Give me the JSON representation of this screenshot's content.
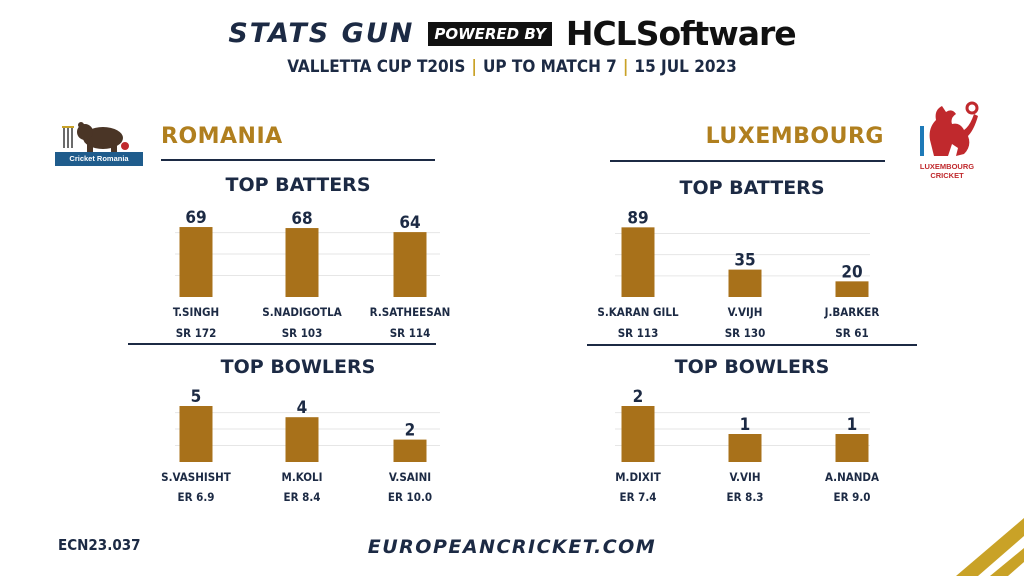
{
  "header": {
    "brand": "STATS GUN",
    "powered_by": "POWERED BY",
    "sponsor": "HCLSoftware",
    "competition": "VALLETTA CUP T20IS",
    "stage": "UP TO MATCH 7",
    "date": "15 JUL 2023",
    "separator": "|"
  },
  "colors": {
    "bar": "#a8711a",
    "navy": "#1c2a44",
    "gold": "#b07f1e",
    "grid": "#e6e6e6"
  },
  "teams": {
    "left": {
      "name": "ROMANIA",
      "logo_text": "Cricket Romania"
    },
    "right": {
      "name": "LUXEMBOURG",
      "logo_text": "LUXEMBOURG CRICKET"
    }
  },
  "chart_data": [
    {
      "type": "bar",
      "title": "TOP BATTERS",
      "team": "ROMANIA",
      "categories": [
        "T.SINGH",
        "S.NADIGOTLA",
        "R.SATHEESAN"
      ],
      "values": [
        69,
        68,
        64
      ],
      "sublabels": [
        "SR 172",
        "SR 103",
        "SR 114"
      ],
      "ylim": [
        0,
        72
      ]
    },
    {
      "type": "bar",
      "title": "TOP BATTERS",
      "team": "LUXEMBOURG",
      "categories": [
        "S.KARAN GILL",
        "V.VIJH",
        "J.BARKER"
      ],
      "values": [
        89,
        35,
        20
      ],
      "sublabels": [
        "SR 113",
        "SR 130",
        "SR 61"
      ],
      "ylim": [
        0,
        92
      ]
    },
    {
      "type": "bar",
      "title": "TOP BOWLERS",
      "team": "ROMANIA",
      "categories": [
        "S.VASHISHT",
        "M.KOLI",
        "V.SAINI"
      ],
      "values": [
        5,
        4,
        2
      ],
      "sublabels": [
        "ER 6.9",
        "ER 8.4",
        "ER 10.0"
      ],
      "ylim": [
        0,
        5
      ]
    },
    {
      "type": "bar",
      "title": "TOP BOWLERS",
      "team": "LUXEMBOURG",
      "categories": [
        "M.DIXIT",
        "V.VIH",
        "A.NANDA"
      ],
      "values": [
        2,
        1,
        1
      ],
      "sublabels": [
        "ER 7.4",
        "ER 8.3",
        "ER 9.0"
      ],
      "ylim": [
        0,
        2
      ]
    }
  ],
  "footer": {
    "code": "ECN23.037",
    "website": "EUROPEANCRICKET.COM"
  }
}
